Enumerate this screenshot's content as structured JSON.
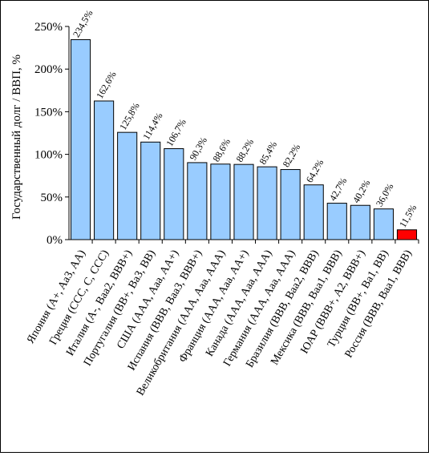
{
  "chart_data": {
    "type": "bar",
    "ylabel": "Государственный долг / ВВП,  %",
    "ylim": [
      0,
      250
    ],
    "yticks": [
      0,
      50,
      100,
      150,
      200,
      250
    ],
    "ytick_labels": [
      "0%",
      "50%",
      "100%",
      "150%",
      "200%",
      "250%"
    ],
    "grid": false,
    "categories": [
      "Япония (A+, Aa3, AA)",
      "Греция (CCC, C, CCC)",
      "Италия (A-, Baa2, BBB+)",
      "Португалия (BB+, Ba3, BB)",
      "США (AAA, Aaa, AA+)",
      "Испания (BBB, Baa3, BBB+)",
      "Великобритания (AAA, Aaa, AAA)",
      "Франция (AAA, Aaa, AA+)",
      "Канада (AAA, Aaa, AAA)",
      "Германия (AAA, Aaa, AAA)",
      "Бразилия (BBB, Baa2, BBB)",
      "Мексика (BBB, Baa1, BBB)",
      "ЮАР (BBB+, A2, BBB+)",
      "Турция (BB+, Ba1, BB)",
      "Россия (BBB, Baa1, BBB)"
    ],
    "values": [
      234.5,
      162.6,
      125.8,
      114.4,
      106.7,
      90.3,
      88.6,
      88.2,
      85.4,
      82.2,
      64.2,
      42.7,
      40.2,
      36.0,
      11.5
    ],
    "data_labels": [
      "234,5%",
      "162,6%",
      "125,8%",
      "114,4%",
      "106,7%",
      "90,3%",
      "88,6%",
      "88,2%",
      "85,4%",
      "82,2%",
      "64,2%",
      "42,7%",
      "40,2%",
      "36,0%",
      "11,5%"
    ],
    "colors": {
      "bar": "#99CCFF",
      "highlight": "#FF0000",
      "outline": "#000000"
    },
    "highlight_category": "Россия (BBB, Baa1, BBB)"
  }
}
